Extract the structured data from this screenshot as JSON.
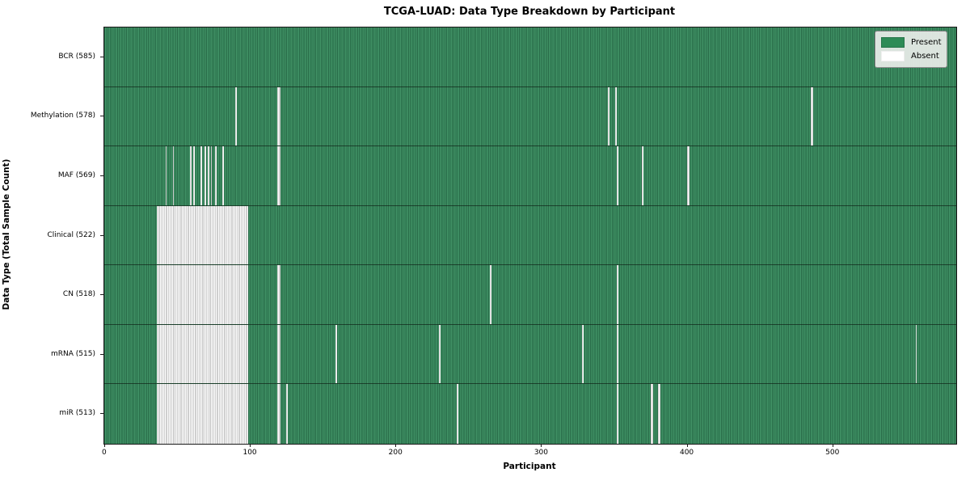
{
  "title": "TCGA-LUAD: Data Type Breakdown by Participant",
  "xlabel": "Participant",
  "ylabel": "Data Type (Total Sample Count)",
  "legend": {
    "present_label": "Present",
    "absent_label": "Absent"
  },
  "colors": {
    "present_fill": "#2e8b57",
    "present_edge_dark": "#276a47",
    "present_light": "#429467",
    "absent_fill": "#ffffff",
    "absent_edge": "#a2a2a2",
    "legend_bg": "#e9ede9"
  },
  "chart_data": {
    "type": "heatmap",
    "title": "TCGA-LUAD: Data Type Breakdown by Participant",
    "xlabel": "Participant",
    "ylabel": "Data Type (Total Sample Count)",
    "legend_entries": [
      "Present",
      "Absent"
    ],
    "legend_position": "upper right",
    "n_participants": 585,
    "x_ticks": [
      0,
      100,
      200,
      300,
      400,
      500
    ],
    "x_range": [
      0,
      585
    ],
    "cell_states": [
      "Present",
      "Absent"
    ],
    "rows": [
      {
        "label": "BCR (585)",
        "data_type": "BCR",
        "present_count": 585,
        "absent_count": 0,
        "absent_ranges": []
      },
      {
        "label": "Methylation (578)",
        "data_type": "Methylation",
        "present_count": 578,
        "absent_count": 7,
        "absent_ranges": [
          [
            90,
            1
          ],
          [
            119,
            2
          ],
          [
            346,
            1
          ],
          [
            351,
            1
          ],
          [
            485,
            2
          ]
        ]
      },
      {
        "label": "MAF (569)",
        "data_type": "MAF",
        "present_count": 569,
        "absent_count": 16,
        "absent_ranges": [
          [
            42,
            1
          ],
          [
            47,
            1
          ],
          [
            59,
            1
          ],
          [
            61,
            1
          ],
          [
            66,
            1
          ],
          [
            69,
            1
          ],
          [
            71,
            1
          ],
          [
            73,
            1
          ],
          [
            76,
            1
          ],
          [
            81,
            1
          ],
          [
            119,
            2
          ],
          [
            352,
            1
          ],
          [
            369,
            1
          ],
          [
            400,
            2
          ]
        ]
      },
      {
        "label": "Clinical (522)",
        "data_type": "Clinical",
        "present_count": 522,
        "absent_count": 63,
        "absent_ranges": [
          [
            36,
            63
          ]
        ]
      },
      {
        "label": "CN (518)",
        "data_type": "CN",
        "present_count": 518,
        "absent_count": 67,
        "absent_ranges": [
          [
            36,
            63
          ],
          [
            119,
            2
          ],
          [
            265,
            1
          ],
          [
            352,
            1
          ]
        ]
      },
      {
        "label": "mRNA (515)",
        "data_type": "mRNA",
        "present_count": 515,
        "absent_count": 70,
        "absent_ranges": [
          [
            36,
            63
          ],
          [
            119,
            2
          ],
          [
            159,
            1
          ],
          [
            230,
            1
          ],
          [
            328,
            1
          ],
          [
            352,
            1
          ],
          [
            557,
            1
          ]
        ]
      },
      {
        "label": "miR (513)",
        "data_type": "miR",
        "present_count": 513,
        "absent_count": 72,
        "absent_ranges": [
          [
            36,
            63
          ],
          [
            119,
            2
          ],
          [
            125,
            1
          ],
          [
            242,
            1
          ],
          [
            352,
            1
          ],
          [
            375,
            2
          ],
          [
            380,
            2
          ]
        ]
      }
    ]
  }
}
